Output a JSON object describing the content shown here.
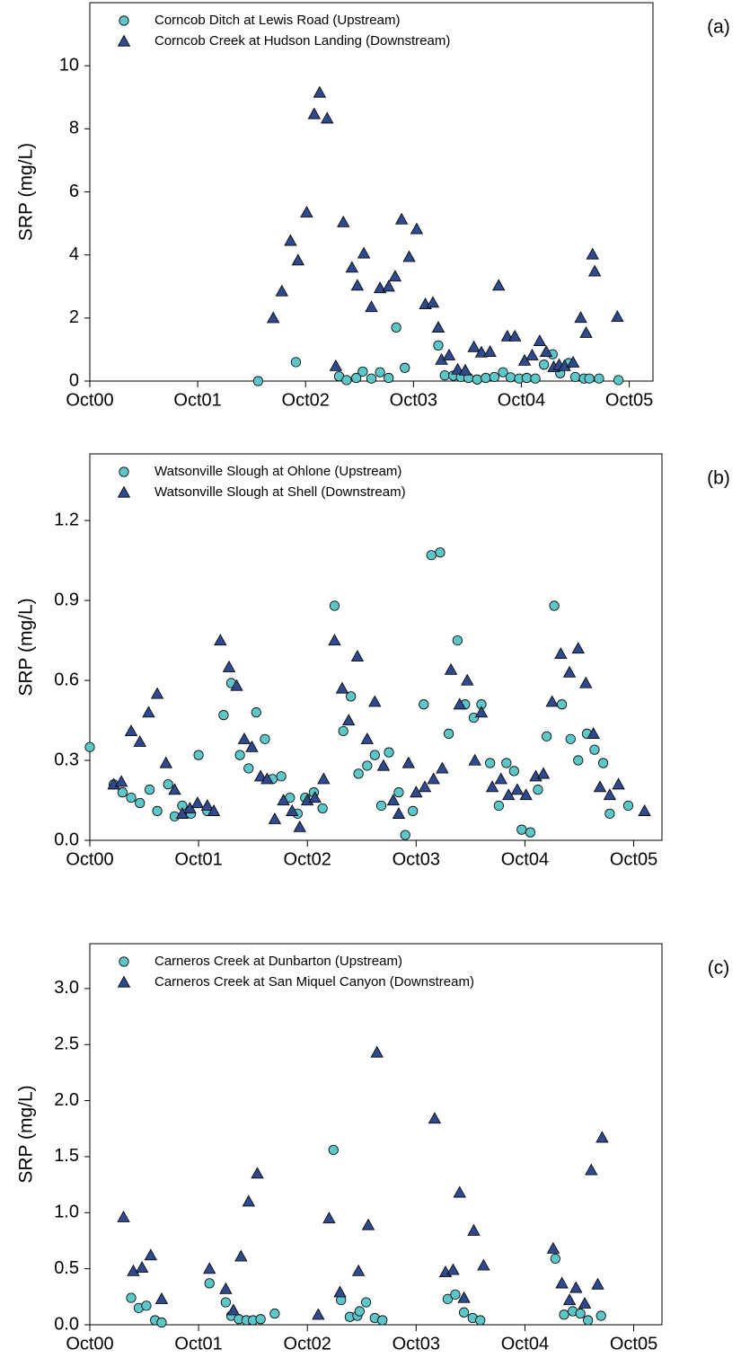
{
  "chart_data": [
    {
      "type": "scatter",
      "panel_label": "(a)",
      "y_label": "SRP (mg/L)",
      "xlim": [
        0,
        5.22
      ],
      "ylim": [
        0,
        12
      ],
      "xticks": [
        {
          "value": 0,
          "label": "Oct00"
        },
        {
          "value": 1,
          "label": "Oct01"
        },
        {
          "value": 2,
          "label": "Oct02"
        },
        {
          "value": 3,
          "label": "Oct03"
        },
        {
          "value": 4,
          "label": "Oct04"
        },
        {
          "value": 5,
          "label": "Oct05"
        }
      ],
      "yticks": [
        0,
        2,
        4,
        6,
        8,
        10
      ],
      "series": [
        {
          "name": "Corncob Ditch at Lewis Road (Upstream)",
          "color": "#5cc6c9",
          "marker": "circle",
          "x": [
            1.56,
            1.91,
            2.31,
            2.38,
            2.47,
            2.53,
            2.61,
            2.69,
            2.77,
            2.84,
            2.92,
            3.23,
            3.29,
            3.37,
            3.44,
            3.51,
            3.59,
            3.67,
            3.75,
            3.83,
            3.9,
            3.98,
            4.05,
            4.13,
            4.21,
            4.29,
            4.36,
            4.44,
            4.5,
            4.58,
            4.63,
            4.72,
            4.9
          ],
          "values": [
            0,
            0.6,
            0.15,
            0.03,
            0.1,
            0.3,
            0.08,
            0.28,
            0.1,
            1.7,
            0.42,
            1.13,
            0.18,
            0.17,
            0.13,
            0.1,
            0.05,
            0.1,
            0.13,
            0.28,
            0.12,
            0.08,
            0.1,
            0.08,
            0.52,
            0.85,
            0.25,
            0.57,
            0.13,
            0.08,
            0.08,
            0.08,
            0.03
          ]
        },
        {
          "name": "Corncob Creek at Hudson Landing (Downstream)",
          "color": "#2f4a8c",
          "marker": "triangle",
          "x": [
            1.7,
            1.78,
            1.86,
            1.93,
            2.01,
            2.08,
            2.13,
            2.2,
            2.28,
            2.35,
            2.43,
            2.48,
            2.54,
            2.61,
            2.69,
            2.77,
            2.83,
            2.89,
            2.96,
            3.03,
            3.11,
            3.18,
            3.23,
            3.26,
            3.33,
            3.41,
            3.48,
            3.56,
            3.63,
            3.71,
            3.79,
            3.87,
            3.94,
            4.03,
            4.1,
            4.17,
            4.23,
            4.3,
            4.35,
            4.4,
            4.48,
            4.55,
            4.6,
            4.66,
            4.68,
            4.89
          ],
          "values": [
            2.0,
            2.85,
            4.45,
            3.83,
            5.35,
            8.47,
            9.15,
            8.33,
            0.48,
            5.04,
            3.6,
            3.03,
            4.05,
            2.35,
            2.95,
            3.0,
            3.32,
            5.13,
            3.94,
            4.82,
            2.44,
            2.49,
            1.7,
            0.68,
            0.82,
            0.37,
            0.34,
            1.08,
            0.91,
            0.93,
            3.03,
            1.42,
            1.42,
            0.65,
            0.82,
            1.27,
            0.93,
            0.45,
            0.51,
            0.48,
            0.59,
            2.01,
            1.53,
            4.02,
            3.48,
            2.04
          ]
        }
      ]
    },
    {
      "type": "scatter",
      "panel_label": "(b)",
      "y_label": "SRP (mg/L)",
      "xlim": [
        0,
        5.26
      ],
      "ylim": [
        0,
        1.45
      ],
      "xticks": [
        {
          "value": 0,
          "label": "Oct00"
        },
        {
          "value": 1,
          "label": "Oct01"
        },
        {
          "value": 2,
          "label": "Oct02"
        },
        {
          "value": 3,
          "label": "Oct03"
        },
        {
          "value": 4,
          "label": "Oct04"
        },
        {
          "value": 5,
          "label": "Oct05"
        }
      ],
      "yticks": [
        {
          "value": 0,
          "label": "0.0"
        },
        0.3,
        0.6,
        0.9,
        1.2
      ],
      "series": [
        {
          "name": "Watsonville Slough  at Ohlone (Upstream)",
          "color": "#5cc6c9",
          "marker": "circle",
          "x": [
            0.0,
            0.22,
            0.3,
            0.38,
            0.46,
            0.55,
            0.62,
            0.72,
            0.78,
            0.85,
            0.93,
            1.0,
            1.08,
            1.23,
            1.3,
            1.38,
            1.46,
            1.53,
            1.61,
            1.68,
            1.76,
            1.84,
            1.91,
            1.98,
            2.06,
            2.14,
            2.25,
            2.33,
            2.4,
            2.47,
            2.55,
            2.62,
            2.68,
            2.75,
            2.84,
            2.9,
            2.97,
            3.07,
            3.14,
            3.22,
            3.3,
            3.38,
            3.45,
            3.53,
            3.6,
            3.68,
            3.76,
            3.83,
            3.9,
            3.97,
            4.05,
            4.12,
            4.2,
            4.27,
            4.34,
            4.42,
            4.49,
            4.57,
            4.64,
            4.72,
            4.78,
            4.95
          ],
          "values": [
            0.35,
            0.21,
            0.18,
            0.16,
            0.14,
            0.19,
            0.11,
            0.21,
            0.09,
            0.13,
            0.1,
            0.32,
            0.11,
            0.47,
            0.59,
            0.32,
            0.27,
            0.48,
            0.38,
            0.23,
            0.24,
            0.16,
            0.1,
            0.16,
            0.18,
            0.12,
            0.88,
            0.41,
            0.54,
            0.25,
            0.28,
            0.32,
            0.13,
            0.33,
            0.18,
            0.02,
            0.11,
            0.51,
            1.07,
            1.08,
            0.4,
            0.75,
            0.51,
            0.46,
            0.51,
            0.29,
            0.13,
            0.29,
            0.26,
            0.04,
            0.03,
            0.19,
            0.39,
            0.88,
            0.51,
            0.38,
            0.3,
            0.4,
            0.34,
            0.29,
            0.1,
            0.13
          ]
        },
        {
          "name": "Watsonville Slough at Shell (Downstream)",
          "color": "#2f4a8c",
          "marker": "triangle",
          "x": [
            0.22,
            0.29,
            0.38,
            0.46,
            0.54,
            0.62,
            0.7,
            0.78,
            0.85,
            0.92,
            0.99,
            1.08,
            1.14,
            1.2,
            1.28,
            1.35,
            1.42,
            1.49,
            1.57,
            1.63,
            1.7,
            1.78,
            1.86,
            1.93,
            2.0,
            2.07,
            2.15,
            2.25,
            2.32,
            2.38,
            2.46,
            2.55,
            2.62,
            2.7,
            2.79,
            2.84,
            2.93,
            3.0,
            3.08,
            3.16,
            3.24,
            3.32,
            3.4,
            3.47,
            3.54,
            3.6,
            3.7,
            3.78,
            3.85,
            3.93,
            4.01,
            4.1,
            4.17,
            4.25,
            4.33,
            4.41,
            4.49,
            4.56,
            4.63,
            4.69,
            4.78,
            4.86,
            5.1
          ],
          "values": [
            0.21,
            0.22,
            0.41,
            0.37,
            0.48,
            0.55,
            0.29,
            0.19,
            0.1,
            0.12,
            0.14,
            0.13,
            0.11,
            0.75,
            0.65,
            0.58,
            0.38,
            0.35,
            0.24,
            0.23,
            0.08,
            0.15,
            0.11,
            0.05,
            0.15,
            0.16,
            0.23,
            0.75,
            0.57,
            0.45,
            0.69,
            0.38,
            0.52,
            0.28,
            0.15,
            0.1,
            0.29,
            0.18,
            0.2,
            0.23,
            0.27,
            0.64,
            0.51,
            0.6,
            0.3,
            0.48,
            0.2,
            0.23,
            0.17,
            0.19,
            0.17,
            0.24,
            0.25,
            0.52,
            0.7,
            0.63,
            0.72,
            0.59,
            0.4,
            0.2,
            0.17,
            0.21,
            0.11
          ]
        }
      ]
    },
    {
      "type": "scatter",
      "panel_label": "(c)",
      "y_label": "SRP (mg/L)",
      "xlim": [
        0,
        5.26
      ],
      "ylim": [
        0,
        3.4
      ],
      "xticks": [
        {
          "value": 0,
          "label": "Oct00"
        },
        {
          "value": 1,
          "label": "Oct01"
        },
        {
          "value": 2,
          "label": "Oct02"
        },
        {
          "value": 3,
          "label": "Oct03"
        },
        {
          "value": 4,
          "label": "Oct04"
        },
        {
          "value": 5,
          "label": "Oct05"
        }
      ],
      "yticks": [
        {
          "value": 0,
          "label": "0.0"
        },
        0.5,
        {
          "value": 1,
          "label": "1.0"
        },
        1.5,
        {
          "value": 2,
          "label": "2.0"
        },
        2.5,
        {
          "value": 3,
          "label": "3.0"
        }
      ],
      "series": [
        {
          "name": "Carneros Creek at Dunbarton (Upstream)",
          "color": "#5cc6c9",
          "marker": "circle",
          "x": [
            0.38,
            0.45,
            0.52,
            0.6,
            0.66,
            1.1,
            1.25,
            1.3,
            1.37,
            1.44,
            1.5,
            1.57,
            1.7,
            2.24,
            2.31,
            2.39,
            2.46,
            2.48,
            2.54,
            2.62,
            2.69,
            3.29,
            3.36,
            3.44,
            3.52,
            3.59,
            4.28,
            4.36,
            4.44,
            4.51,
            4.58,
            4.7
          ],
          "values": [
            0.24,
            0.15,
            0.17,
            0.04,
            0.02,
            0.37,
            0.2,
            0.08,
            0.05,
            0.04,
            0.04,
            0.05,
            0.1,
            1.56,
            0.22,
            0.07,
            0.08,
            0.12,
            0.2,
            0.06,
            0.04,
            0.23,
            0.27,
            0.11,
            0.06,
            0.04,
            0.59,
            0.09,
            0.12,
            0.1,
            0.04,
            0.08
          ]
        },
        {
          "name": "Carneros Creek at San Miquel Canyon (Downstream)",
          "color": "#2f4a8c",
          "marker": "triangle",
          "x": [
            0.31,
            0.4,
            0.48,
            0.56,
            0.66,
            1.1,
            1.25,
            1.32,
            1.39,
            1.46,
            1.54,
            2.1,
            2.2,
            2.3,
            2.47,
            2.56,
            2.64,
            3.17,
            3.27,
            3.34,
            3.4,
            3.44,
            3.53,
            3.62,
            4.26,
            4.34,
            4.41,
            4.47,
            4.55,
            4.61,
            4.67,
            4.71
          ],
          "values": [
            0.96,
            0.48,
            0.51,
            0.62,
            0.23,
            0.5,
            0.32,
            0.13,
            0.61,
            1.1,
            1.35,
            0.09,
            0.95,
            0.29,
            0.48,
            0.89,
            2.43,
            1.84,
            0.47,
            0.49,
            1.18,
            0.24,
            0.84,
            0.53,
            0.68,
            0.37,
            0.22,
            0.33,
            0.19,
            1.38,
            0.36,
            1.67
          ]
        }
      ]
    }
  ]
}
